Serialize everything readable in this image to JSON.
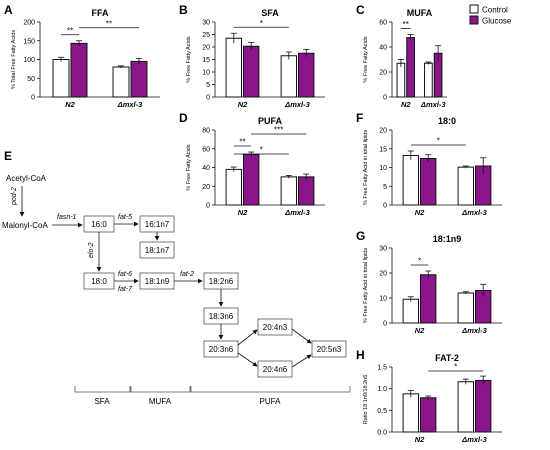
{
  "colors": {
    "control": "#ffffff",
    "glucose": "#8b168b",
    "stroke": "#111111"
  },
  "legend": {
    "control": "Control",
    "glucose": "Glucose",
    "placement": "top-right"
  },
  "groups": [
    "N2",
    "Δmxl-3"
  ],
  "chart_data": [
    {
      "panel": "A",
      "type": "bar",
      "title": "FFA",
      "ylabel": "% Total Free Fatty Acids",
      "ylim": [
        0,
        200
      ],
      "yticks": [
        0,
        50,
        100,
        150,
        200
      ],
      "categories": [
        "N2",
        "Δmxl-3"
      ],
      "series": [
        {
          "name": "Control",
          "values": [
            100,
            80
          ],
          "err": [
            6,
            3
          ]
        },
        {
          "name": "Glucose",
          "values": [
            143,
            95
          ],
          "err": [
            7,
            8
          ]
        }
      ],
      "annotations": [
        {
          "label": "**",
          "from": [
            0,
            0
          ],
          "to": [
            0,
            1
          ]
        },
        {
          "label": "**",
          "from": [
            0,
            1
          ],
          "to": [
            1,
            1
          ]
        }
      ]
    },
    {
      "panel": "B",
      "type": "bar",
      "title": "SFA",
      "ylabel": "% Free Fatty Acids",
      "ylim": [
        0,
        30
      ],
      "yticks": [
        0,
        5,
        10,
        15,
        20,
        25,
        30
      ],
      "categories": [
        "N2",
        "Δmxl-3"
      ],
      "series": [
        {
          "name": "Control",
          "values": [
            23.5,
            16.5
          ],
          "err": [
            2,
            1.5
          ]
        },
        {
          "name": "Glucose",
          "values": [
            20.3,
            17.5
          ],
          "err": [
            1.5,
            1.5
          ]
        }
      ],
      "annotations": [
        {
          "label": "*",
          "from": [
            0,
            0
          ],
          "to": [
            1,
            0
          ]
        }
      ]
    },
    {
      "panel": "C",
      "type": "bar",
      "title": "MUFA",
      "ylabel": "% Free Fatty Acids",
      "ylim": [
        0,
        60
      ],
      "yticks": [
        0,
        20,
        40,
        60
      ],
      "categories": [
        "N2",
        "Δmxl-3"
      ],
      "series": [
        {
          "name": "Control",
          "values": [
            27,
            27
          ],
          "err": [
            3,
            1
          ]
        },
        {
          "name": "Glucose",
          "values": [
            47.5,
            35
          ],
          "err": [
            2.5,
            6
          ]
        }
      ],
      "annotations": [
        {
          "label": "**",
          "from": [
            0,
            0
          ],
          "to": [
            0,
            1
          ]
        }
      ]
    },
    {
      "panel": "D",
      "type": "bar",
      "title": "PUFA",
      "ylabel": "% Free Fatty Acids",
      "ylim": [
        0,
        80
      ],
      "yticks": [
        0,
        20,
        40,
        60,
        80
      ],
      "categories": [
        "N2",
        "Δmxl-3"
      ],
      "series": [
        {
          "name": "Control",
          "values": [
            38,
            30
          ],
          "err": [
            2.5,
            1.5
          ]
        },
        {
          "name": "Glucose",
          "values": [
            54,
            30
          ],
          "err": [
            2.5,
            3
          ]
        }
      ],
      "annotations": [
        {
          "label": "**",
          "from": [
            0,
            0
          ],
          "to": [
            0,
            1
          ]
        },
        {
          "label": "*",
          "from": [
            0,
            0
          ],
          "to": [
            1,
            0
          ]
        },
        {
          "label": "***",
          "from": [
            0,
            1
          ],
          "to": [
            1,
            1
          ]
        }
      ]
    },
    {
      "panel": "F",
      "type": "bar",
      "title": "18:0",
      "ylabel": "% Free Fatty Acid in total lipids",
      "ylim": [
        0,
        20
      ],
      "yticks": [
        0,
        5,
        10,
        15,
        20
      ],
      "categories": [
        "N2",
        "Δmxl-3"
      ],
      "series": [
        {
          "name": "Control",
          "values": [
            13.2,
            10.1
          ],
          "err": [
            1.2,
            0.3
          ]
        },
        {
          "name": "Glucose",
          "values": [
            12.4,
            10.4
          ],
          "err": [
            1.0,
            2.2
          ]
        }
      ],
      "annotations": [
        {
          "label": "*",
          "from": [
            0,
            0
          ],
          "to": [
            1,
            0
          ]
        }
      ]
    },
    {
      "panel": "G",
      "type": "bar",
      "title": "18:1n9",
      "ylabel": "% Free Fatty Acid in total lipids",
      "ylim": [
        0,
        30
      ],
      "yticks": [
        0,
        10,
        20,
        30
      ],
      "categories": [
        "N2",
        "Δmxl-3"
      ],
      "series": [
        {
          "name": "Control",
          "values": [
            9.5,
            12
          ],
          "err": [
            1,
            0.5
          ]
        },
        {
          "name": "Glucose",
          "values": [
            19.3,
            13
          ],
          "err": [
            1.5,
            2.5
          ]
        }
      ],
      "annotations": [
        {
          "label": "*",
          "from": [
            0,
            0
          ],
          "to": [
            0,
            1
          ]
        }
      ]
    },
    {
      "panel": "H",
      "type": "bar",
      "title": "FAT-2",
      "ylabel": "Ratio 18:1n9/18:2n6",
      "ylim": [
        0,
        1.5
      ],
      "yticks": [
        0.0,
        0.5,
        1.0,
        1.5
      ],
      "categories": [
        "N2",
        "Δmxl-3"
      ],
      "series": [
        {
          "name": "Control",
          "values": [
            0.88,
            1.16
          ],
          "err": [
            0.08,
            0.06
          ]
        },
        {
          "name": "Glucose",
          "values": [
            0.79,
            1.19
          ],
          "err": [
            0.04,
            0.1
          ]
        }
      ],
      "annotations": [
        {
          "label": "*",
          "from": [
            0,
            1
          ],
          "to": [
            1,
            1
          ]
        }
      ]
    }
  ],
  "pathway": {
    "letter": "E",
    "acetyl": "Acetyl-CoA",
    "malonyl": "Malonyl-CoA",
    "nodes": [
      "16:0",
      "16:1n7",
      "18:1n7",
      "18:0",
      "18:1n9",
      "18:2n6",
      "18:3n6",
      "20:3n6",
      "20:4n3",
      "20:4n6",
      "20:5n3"
    ],
    "enzymes": [
      "pod-2",
      "fasn-1",
      "fat-5",
      "elo-2",
      "fat-6",
      "fat-7",
      "fat-2"
    ],
    "categories": [
      "SFA",
      "MUFA",
      "PUFA"
    ]
  }
}
